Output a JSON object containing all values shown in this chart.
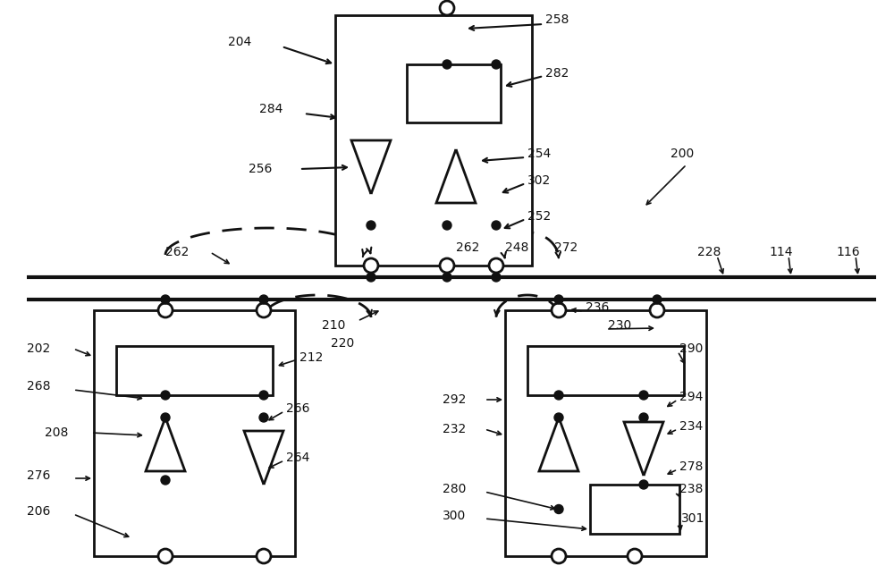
{
  "bg_color": "#ffffff",
  "line_color": "#111111",
  "lw": 2.0,
  "lw_bus": 3.0,
  "figsize": [
    10.0,
    6.42
  ],
  "dpi": 100
}
